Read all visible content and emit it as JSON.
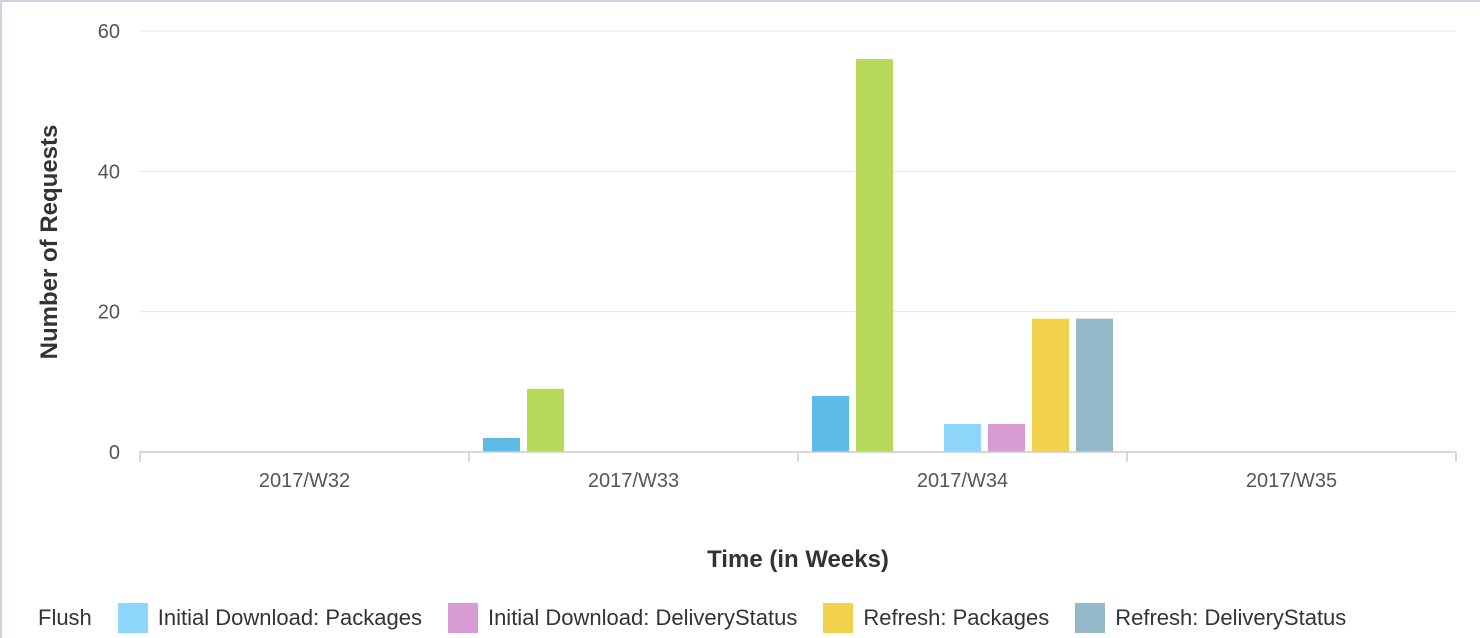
{
  "chart_data": {
    "type": "bar",
    "title": "",
    "xlabel": "Time (in Weeks)",
    "ylabel": "Number of Requests",
    "ylim": [
      0,
      60
    ],
    "yticks": [
      0,
      20,
      40,
      60
    ],
    "grid": true,
    "legend_position": "bottom",
    "categories": [
      "2017/W32",
      "2017/W33",
      "2017/W34",
      "2017/W35"
    ],
    "series": [
      {
        "name": "",
        "color": "#5dbbe5",
        "values": [
          0,
          2,
          8,
          0
        ]
      },
      {
        "name": "",
        "color": "#b8da5a",
        "values": [
          0,
          9,
          56,
          0
        ]
      },
      {
        "name": "Flush",
        "color": "",
        "values": [
          0,
          0,
          0,
          0
        ]
      },
      {
        "name": "Initial Download: Packages",
        "color": "#8fd6fd",
        "values": [
          0,
          0,
          4,
          0
        ]
      },
      {
        "name": "Initial Download: DeliveryStatus",
        "color": "#d99bd4",
        "values": [
          0,
          0,
          4,
          0
        ]
      },
      {
        "name": "Refresh: Packages",
        "color": "#f2d24c",
        "values": [
          0,
          0,
          19,
          0
        ]
      },
      {
        "name": "Refresh: DeliveryStatus",
        "color": "#95b9c8",
        "values": [
          0,
          0,
          19,
          0
        ]
      }
    ]
  }
}
